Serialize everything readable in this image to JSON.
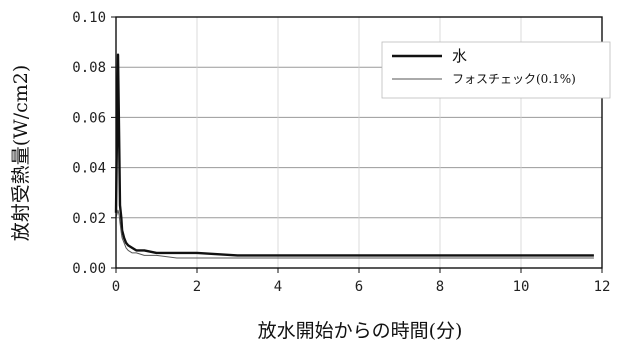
{
  "chart_data": {
    "type": "line",
    "title": "",
    "xlabel": "放水開始からの時間(分)",
    "ylabel": "放射受熱量(W/cm2)",
    "xlim": [
      0,
      12
    ],
    "ylim": [
      0,
      0.1
    ],
    "x_ticks": [
      "0",
      "2",
      "4",
      "6",
      "8",
      "10",
      "12"
    ],
    "y_ticks": [
      "0.00",
      "0.02",
      "0.04",
      "0.06",
      "0.08",
      "0.10"
    ],
    "grid": true,
    "legend_position": "top-right",
    "series": [
      {
        "name": "水",
        "color": "#111111",
        "style": "thick",
        "x": [
          0,
          0.05,
          0.08,
          0.1,
          0.13,
          0.15,
          0.2,
          0.25,
          0.3,
          0.4,
          0.5,
          0.7,
          1.0,
          1.5,
          2.0,
          3.0,
          4.0,
          5.0,
          6.0,
          7.0,
          8.0,
          9.0,
          10.0,
          11.0,
          11.8
        ],
        "y": [
          0.022,
          0.085,
          0.05,
          0.025,
          0.02,
          0.015,
          0.012,
          0.01,
          0.009,
          0.008,
          0.007,
          0.007,
          0.006,
          0.006,
          0.006,
          0.005,
          0.005,
          0.005,
          0.005,
          0.005,
          0.005,
          0.005,
          0.005,
          0.005,
          0.005
        ]
      },
      {
        "name": "フォスチェック(0.1%)",
        "color": "#555555",
        "style": "thin",
        "x": [
          0,
          0.05,
          0.08,
          0.1,
          0.13,
          0.15,
          0.2,
          0.25,
          0.3,
          0.4,
          0.5,
          0.7,
          1.0,
          1.5,
          2.0,
          3.0,
          4.0,
          5.0,
          6.0,
          7.0,
          8.0,
          9.0,
          10.0,
          11.0,
          11.8
        ],
        "y": [
          0.02,
          0.023,
          0.021,
          0.018,
          0.014,
          0.012,
          0.01,
          0.008,
          0.007,
          0.006,
          0.006,
          0.005,
          0.005,
          0.004,
          0.004,
          0.004,
          0.004,
          0.004,
          0.004,
          0.004,
          0.004,
          0.004,
          0.004,
          0.004,
          0.004
        ]
      }
    ]
  }
}
